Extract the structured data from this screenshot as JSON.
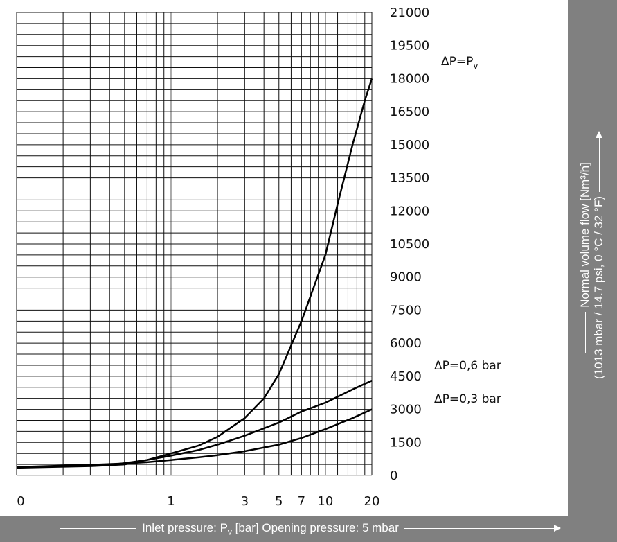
{
  "chart_data": {
    "type": "line",
    "x_scale": "log",
    "xlabel": "Inlet pressure: P_v [bar] Opening pressure: 5 mbar",
    "xlabel_parts": [
      "Inlet pressure: P",
      "v",
      " [bar] Opening pressure: 5 mbar"
    ],
    "ylabel_lines": [
      "Normal volume flow [Nm³/h]",
      "(1013 mbar / 14.7 psi, 0 °C / 32 °F)"
    ],
    "x_tick_labels": [
      "0",
      "1",
      "3",
      "5",
      "7",
      "10",
      "20"
    ],
    "y_tick_labels": [
      "0",
      "1500",
      "3000",
      "4500",
      "6000",
      "7500",
      "9000",
      "10500",
      "12000",
      "13500",
      "15000",
      "16500",
      "18000",
      "19500",
      "21000"
    ],
    "ylim": [
      0,
      21000
    ],
    "grid": true,
    "series": [
      {
        "name": "ΔP=P_v",
        "label_parts": [
          "ΔP=P",
          "v"
        ],
        "x": [
          0.1,
          0.3,
          0.5,
          0.7,
          1,
          1.5,
          2,
          3,
          4,
          5,
          7,
          10,
          12,
          15,
          18,
          20
        ],
        "y": [
          350,
          420,
          500,
          700,
          1000,
          1350,
          1750,
          2600,
          3500,
          4600,
          7000,
          10000,
          12300,
          15000,
          17000,
          18000
        ]
      },
      {
        "name": "ΔP=0,6 bar",
        "x": [
          0.4,
          0.5,
          0.7,
          1,
          1.5,
          2,
          3,
          5,
          7,
          10,
          15,
          20
        ],
        "y": [
          480,
          560,
          700,
          900,
          1150,
          1400,
          1800,
          2400,
          2900,
          3300,
          3900,
          4300
        ]
      },
      {
        "name": "ΔP=0,3 bar",
        "x": [
          0.1,
          0.3,
          0.5,
          0.7,
          1,
          1.5,
          2,
          3,
          5,
          7,
          10,
          15,
          20
        ],
        "y": [
          380,
          480,
          540,
          600,
          700,
          820,
          920,
          1100,
          1400,
          1700,
          2100,
          2600,
          3000
        ]
      }
    ]
  }
}
